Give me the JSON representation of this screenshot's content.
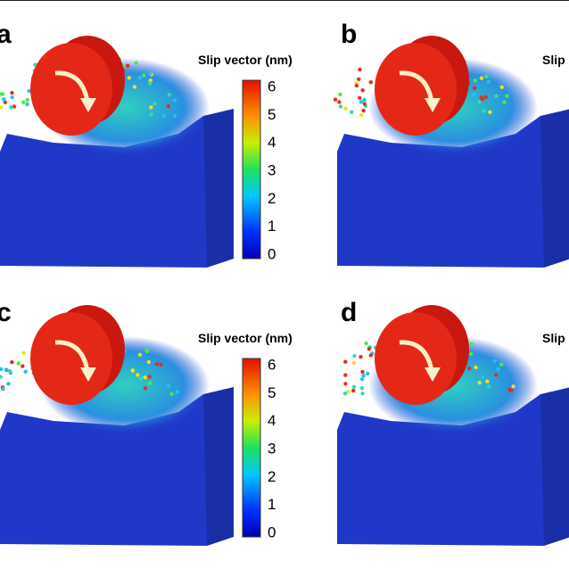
{
  "panels": [
    {
      "label": "a",
      "colorbar_title": "Slip vector (nm)",
      "ticks": [
        6,
        5,
        4,
        3,
        2,
        1,
        0
      ]
    },
    {
      "label": "b",
      "colorbar_title": "Slip"
    },
    {
      "label": "c",
      "colorbar_title": "Slip vector (nm)",
      "ticks": [
        6,
        5,
        4,
        3,
        2,
        1,
        0
      ]
    },
    {
      "label": "d",
      "colorbar_title": "Slip"
    }
  ]
}
